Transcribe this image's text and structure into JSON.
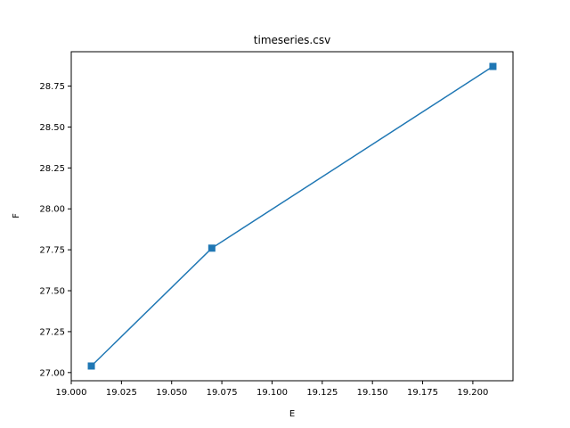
{
  "chart_data": {
    "type": "line",
    "title": "timeseries.csv",
    "xlabel": "E",
    "ylabel": "F",
    "xlim": [
      19.0,
      19.22
    ],
    "ylim": [
      26.95,
      28.96
    ],
    "xticks": [
      19.0,
      19.025,
      19.05,
      19.075,
      19.1,
      19.125,
      19.15,
      19.175,
      19.2
    ],
    "xtick_labels": [
      "19.000",
      "19.025",
      "19.050",
      "19.075",
      "19.100",
      "19.125",
      "19.150",
      "19.175",
      "19.200"
    ],
    "yticks": [
      27.0,
      27.25,
      27.5,
      27.75,
      28.0,
      28.25,
      28.5,
      28.75
    ],
    "ytick_labels": [
      "27.00",
      "27.25",
      "27.50",
      "27.75",
      "28.00",
      "28.25",
      "28.50",
      "28.75"
    ],
    "grid": false,
    "series": [
      {
        "color": "#1f77b4",
        "marker": "square",
        "x": [
          19.01,
          19.07,
          19.21
        ],
        "y": [
          27.04,
          27.76,
          28.87
        ]
      }
    ]
  }
}
